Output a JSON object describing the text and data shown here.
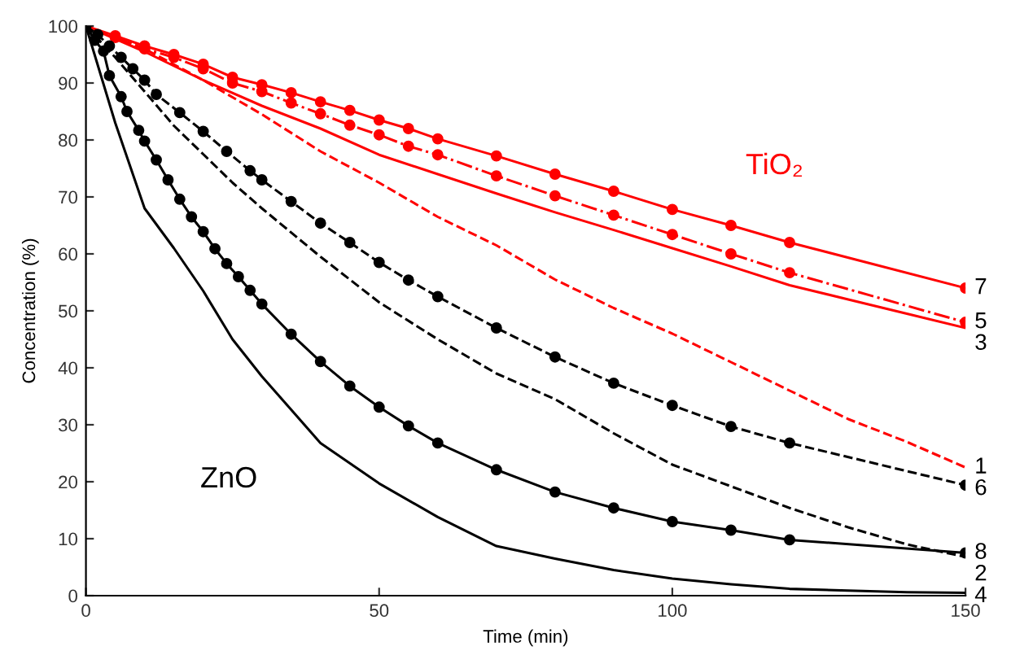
{
  "chart_data": {
    "type": "line",
    "xlabel": "Time (min)",
    "ylabel": "Concentration (%)",
    "xlim": [
      0,
      150
    ],
    "xticks": [
      0,
      50,
      100,
      150
    ],
    "ylim": [
      0,
      100
    ],
    "yticks": [
      0,
      10,
      20,
      30,
      40,
      50,
      60,
      70,
      80,
      90,
      100
    ],
    "grid": false,
    "legend": false,
    "annotations": [
      "TiO₂",
      "ZnO"
    ],
    "series": [
      {
        "name": "7",
        "color": "#ff0000",
        "marker": "circle",
        "line_style": "solid",
        "x": [
          0,
          5,
          10,
          15,
          20,
          25,
          30,
          35,
          40,
          45,
          50,
          55,
          60,
          70,
          80,
          90,
          100,
          110,
          120,
          150
        ],
        "values": [
          100,
          98.3,
          96.5,
          95,
          93.3,
          91,
          89.7,
          88.3,
          86.7,
          85.2,
          83.5,
          82,
          80.2,
          77.2,
          74,
          71,
          67.8,
          65,
          62,
          54
        ]
      },
      {
        "name": "5",
        "color": "#ff0000",
        "marker": "circle",
        "line_style": "dashdot",
        "x": [
          0,
          5,
          10,
          15,
          20,
          25,
          30,
          35,
          40,
          45,
          50,
          55,
          60,
          70,
          80,
          90,
          100,
          110,
          120,
          150
        ],
        "values": [
          100,
          98,
          96,
          94.5,
          92.5,
          90,
          88.5,
          86.5,
          84.6,
          82.6,
          80.9,
          78.9,
          77.4,
          73.7,
          70.2,
          66.8,
          63.4,
          60,
          56.7,
          48
        ]
      },
      {
        "name": "3",
        "color": "#ff0000",
        "marker": "none",
        "line_style": "solid",
        "x": [
          0,
          10,
          20,
          30,
          40,
          50,
          60,
          70,
          80,
          90,
          100,
          110,
          120,
          130,
          140,
          150
        ],
        "values": [
          100,
          95.5,
          90.5,
          86,
          82,
          77.4,
          74,
          70.6,
          67.3,
          64.2,
          61,
          57.8,
          54.5,
          52,
          49.5,
          47
        ]
      },
      {
        "name": "1",
        "color": "#ff0000",
        "marker": "none",
        "line_style": "dashed",
        "x": [
          0,
          10,
          20,
          30,
          40,
          50,
          60,
          70,
          80,
          90,
          100,
          110,
          120,
          130,
          140,
          150
        ],
        "values": [
          100,
          96,
          90.5,
          84.5,
          78,
          72.5,
          66.5,
          61.5,
          55.5,
          50.5,
          46,
          41,
          36,
          31,
          27,
          22.5
        ]
      },
      {
        "name": "6",
        "color": "#000000",
        "marker": "circle",
        "line_style": "dashed",
        "x": [
          0,
          2,
          4,
          6,
          8,
          10,
          12,
          16,
          20,
          24,
          28,
          30,
          35,
          40,
          45,
          50,
          55,
          60,
          70,
          80,
          90,
          100,
          110,
          120,
          150
        ],
        "values": [
          100,
          98.5,
          96.5,
          94.5,
          92.5,
          90.5,
          88,
          84.8,
          81.5,
          78,
          74.6,
          73,
          69.2,
          65.4,
          62,
          58.5,
          55.4,
          52.5,
          47,
          41.9,
          37.3,
          33.4,
          29.7,
          26.8,
          19.4
        ]
      },
      {
        "name": "8",
        "color": "#000000",
        "marker": "circle",
        "line_style": "solid",
        "x": [
          0,
          1.5,
          3,
          4,
          6,
          7,
          9,
          10,
          12,
          14,
          16,
          18,
          20,
          22,
          24,
          26,
          28,
          30,
          35,
          40,
          45,
          50,
          55,
          60,
          70,
          80,
          90,
          100,
          110,
          120,
          150
        ],
        "values": [
          100,
          97.5,
          95.6,
          91.3,
          87.6,
          85,
          81.7,
          79.8,
          76.5,
          73,
          69.6,
          66.5,
          63.9,
          60.9,
          58.3,
          56,
          53.6,
          51.2,
          45.9,
          41.1,
          36.8,
          33.1,
          29.8,
          26.8,
          22.1,
          18.2,
          15.4,
          13,
          11.5,
          9.8,
          7.5
        ]
      },
      {
        "name": "2",
        "color": "#000000",
        "marker": "none",
        "line_style": "dashed",
        "x": [
          0,
          5,
          10,
          15,
          20,
          25,
          30,
          40,
          50,
          60,
          70,
          80,
          90,
          100,
          110,
          120,
          130,
          140,
          150
        ],
        "values": [
          100,
          94.5,
          88.5,
          82.5,
          77.5,
          72.5,
          68,
          59.5,
          51.5,
          45,
          39,
          34.5,
          28.5,
          23,
          19.2,
          15.4,
          12,
          9,
          6.8
        ]
      },
      {
        "name": "4",
        "color": "#000000",
        "marker": "none",
        "line_style": "solid",
        "x": [
          0,
          5,
          10,
          15,
          20,
          25,
          30,
          40,
          50,
          60,
          70,
          80,
          90,
          100,
          110,
          120,
          130,
          140,
          150
        ],
        "values": [
          100,
          83,
          68,
          61,
          53.5,
          45,
          38.5,
          26.8,
          19.7,
          13.8,
          8.7,
          6.5,
          4.5,
          3,
          2,
          1.2,
          0.9,
          0.6,
          0.5
        ]
      }
    ]
  }
}
